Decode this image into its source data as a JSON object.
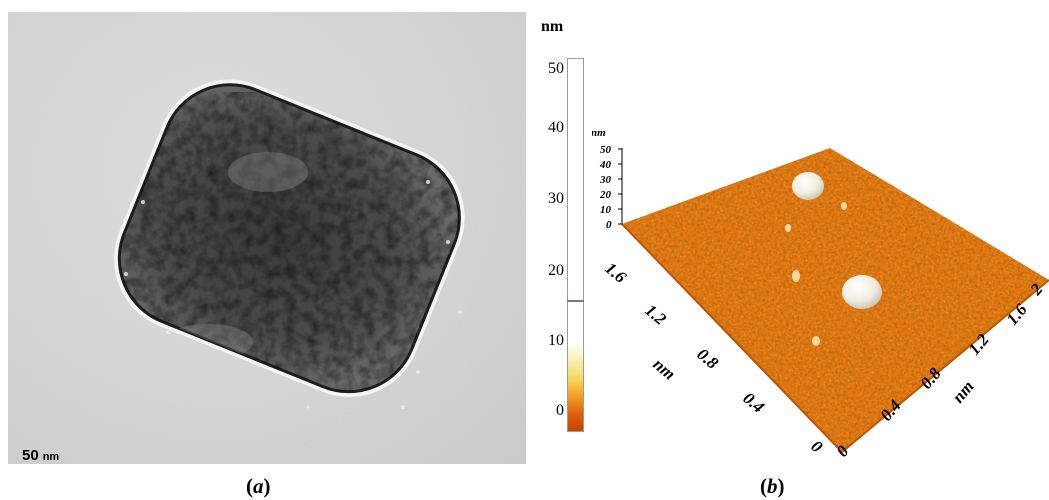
{
  "panel_a": {
    "caption_open": "(",
    "caption_letter": "a",
    "caption_close": ")",
    "scale_value": "50",
    "scale_unit": "nm"
  },
  "colorbar": {
    "unit": "nm",
    "ticks": [
      "50",
      "40",
      "30",
      "20",
      "10",
      "0"
    ],
    "marker_value": 17
  },
  "panel_b": {
    "caption_open": "(",
    "caption_letter": "b",
    "caption_close": ")",
    "z_unit": "nm",
    "z_ticks": [
      "50",
      "40",
      "30",
      "20",
      "10",
      "0"
    ],
    "left_axis_ticks": [
      "0",
      "0.4",
      "0.8",
      "1.2",
      "1.6"
    ],
    "left_axis_unit": "nm",
    "right_axis_ticks": [
      "0",
      "0.4",
      "0.8",
      "1.2",
      "1.6",
      "2"
    ],
    "right_axis_unit": "nm"
  },
  "colors": {
    "surface": "#e77a14",
    "surface_dark": "#b9540a",
    "particle": "#f2f0e8"
  }
}
